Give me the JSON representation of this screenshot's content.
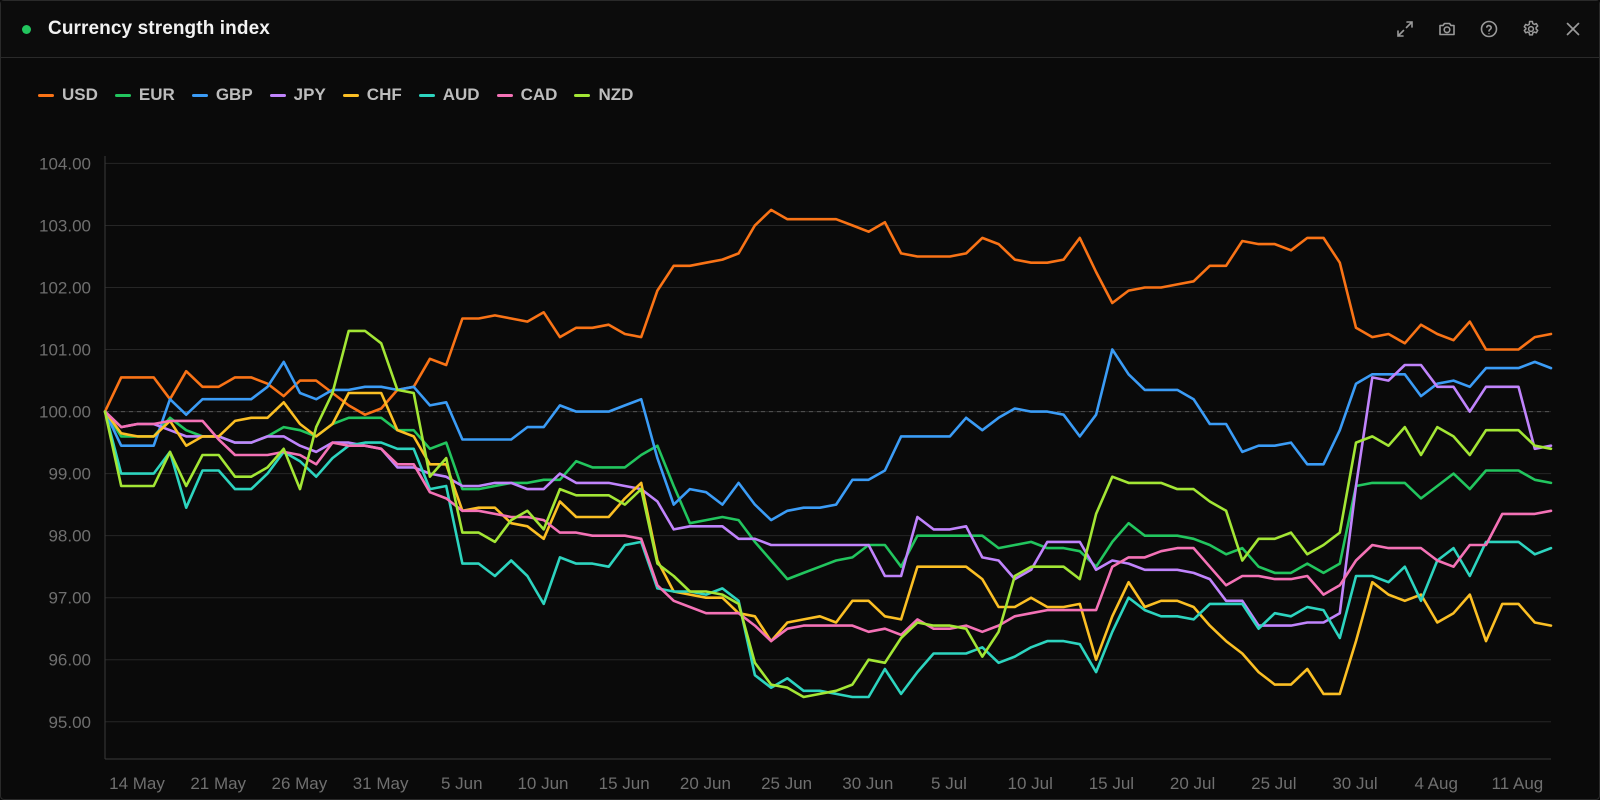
{
  "header": {
    "title": "Currency strength index",
    "status_color": "#22c55e",
    "tools": [
      {
        "name": "expand-icon"
      },
      {
        "name": "camera-icon"
      },
      {
        "name": "help-icon"
      },
      {
        "name": "gear-icon"
      },
      {
        "name": "close-icon"
      }
    ]
  },
  "legend": [
    {
      "label": "USD",
      "color": "#f97316"
    },
    {
      "label": "EUR",
      "color": "#22c55e"
    },
    {
      "label": "GBP",
      "color": "#3b9cf6"
    },
    {
      "label": "JPY",
      "color": "#c084fc"
    },
    {
      "label": "CHF",
      "color": "#fbbf24"
    },
    {
      "label": "AUD",
      "color": "#2dd4bf"
    },
    {
      "label": "CAD",
      "color": "#f472b6"
    },
    {
      "label": "NZD",
      "color": "#a3e635"
    }
  ],
  "chart_data": {
    "type": "line",
    "title": "Currency strength index",
    "xlabel": "",
    "ylabel": "",
    "x_ticks": [
      "14 May",
      "21 May",
      "26 May",
      "31 May",
      "5 Jun",
      "10 Jun",
      "15 Jun",
      "20 Jun",
      "25 Jun",
      "30 Jun",
      "5 Jul",
      "10 Jul",
      "15 Jul",
      "20 Jul",
      "25 Jul",
      "30 Jul",
      "4 Aug",
      "11 Aug"
    ],
    "y_ticks": [
      "95.00",
      "96.00",
      "97.00",
      "98.00",
      "99.00",
      "100.00",
      "101.00",
      "102.00",
      "103.00",
      "104.00"
    ],
    "ylim": [
      94.4,
      104.2
    ],
    "reference_line": 100,
    "grid": true,
    "legend_position": "top-left",
    "series": [
      {
        "name": "USD",
        "color": "#f97316",
        "values": [
          100.0,
          100.55,
          100.55,
          100.55,
          100.2,
          100.65,
          100.4,
          100.4,
          100.55,
          100.55,
          100.45,
          100.25,
          100.5,
          100.5,
          100.3,
          100.1,
          99.95,
          100.05,
          100.35,
          100.4,
          100.85,
          100.75,
          101.5,
          101.5,
          101.55,
          101.5,
          101.45,
          101.6,
          101.2,
          101.35,
          101.35,
          101.4,
          101.25,
          101.2,
          101.95,
          102.35,
          102.35,
          102.4,
          102.45,
          102.55,
          103.0,
          103.25,
          103.1,
          103.1,
          103.1,
          103.1,
          103.0,
          102.9,
          103.05,
          102.55,
          102.5,
          102.5,
          102.5,
          102.55,
          102.8,
          102.7,
          102.45,
          102.4,
          102.4,
          102.45,
          102.8,
          102.25,
          101.75,
          101.95,
          102.0,
          102.0,
          102.05,
          102.1,
          102.35,
          102.35,
          102.75,
          102.7,
          102.7,
          102.6,
          102.8,
          102.8,
          102.4,
          101.35,
          101.2,
          101.25,
          101.1,
          101.4,
          101.25,
          101.15,
          101.45,
          101.0,
          101.0,
          101.0,
          101.2,
          101.25
        ]
      },
      {
        "name": "EUR",
        "color": "#22c55e",
        "values": [
          100.0,
          99.6,
          99.6,
          99.6,
          99.9,
          99.7,
          99.6,
          99.6,
          99.5,
          99.5,
          99.6,
          99.75,
          99.7,
          99.6,
          99.8,
          99.9,
          99.9,
          99.9,
          99.7,
          99.7,
          99.4,
          99.5,
          98.75,
          98.75,
          98.8,
          98.85,
          98.85,
          98.9,
          98.9,
          99.2,
          99.1,
          99.1,
          99.1,
          99.3,
          99.45,
          98.8,
          98.2,
          98.25,
          98.3,
          98.25,
          97.9,
          97.6,
          97.3,
          97.4,
          97.5,
          97.6,
          97.65,
          97.85,
          97.85,
          97.5,
          98.0,
          98.0,
          98.0,
          98.0,
          98.0,
          97.8,
          97.85,
          97.9,
          97.8,
          97.8,
          97.75,
          97.5,
          97.9,
          98.2,
          98.0,
          98.0,
          98.0,
          97.95,
          97.85,
          97.7,
          97.8,
          97.5,
          97.4,
          97.4,
          97.55,
          97.4,
          97.55,
          98.8,
          98.85,
          98.85,
          98.85,
          98.6,
          98.8,
          99.0,
          98.75,
          99.05,
          99.05,
          99.05,
          98.9,
          98.85
        ]
      },
      {
        "name": "GBP",
        "color": "#3b9cf6",
        "values": [
          100.0,
          99.45,
          99.45,
          99.45,
          100.2,
          99.95,
          100.2,
          100.2,
          100.2,
          100.2,
          100.4,
          100.8,
          100.3,
          100.2,
          100.35,
          100.35,
          100.4,
          100.4,
          100.35,
          100.4,
          100.1,
          100.15,
          99.55,
          99.55,
          99.55,
          99.55,
          99.75,
          99.75,
          100.1,
          100.0,
          100.0,
          100.0,
          100.1,
          100.2,
          99.25,
          98.5,
          98.75,
          98.7,
          98.5,
          98.85,
          98.5,
          98.25,
          98.4,
          98.45,
          98.45,
          98.5,
          98.9,
          98.9,
          99.05,
          99.6,
          99.6,
          99.6,
          99.6,
          99.9,
          99.7,
          99.9,
          100.05,
          100.0,
          100.0,
          99.95,
          99.6,
          99.95,
          101.0,
          100.6,
          100.35,
          100.35,
          100.35,
          100.2,
          99.8,
          99.8,
          99.35,
          99.45,
          99.45,
          99.5,
          99.15,
          99.15,
          99.7,
          100.45,
          100.6,
          100.6,
          100.6,
          100.25,
          100.45,
          100.5,
          100.4,
          100.7,
          100.7,
          100.7,
          100.8,
          100.7
        ]
      },
      {
        "name": "JPY",
        "color": "#c084fc",
        "values": [
          100.0,
          99.75,
          99.8,
          99.8,
          99.7,
          99.6,
          99.6,
          99.6,
          99.5,
          99.5,
          99.6,
          99.6,
          99.45,
          99.35,
          99.5,
          99.5,
          99.45,
          99.4,
          99.1,
          99.1,
          99.0,
          98.95,
          98.8,
          98.8,
          98.85,
          98.85,
          98.75,
          98.75,
          99.0,
          98.85,
          98.85,
          98.85,
          98.8,
          98.75,
          98.55,
          98.1,
          98.15,
          98.15,
          98.15,
          97.95,
          97.95,
          97.85,
          97.85,
          97.85,
          97.85,
          97.85,
          97.85,
          97.85,
          97.35,
          97.35,
          98.3,
          98.1,
          98.1,
          98.15,
          97.65,
          97.6,
          97.3,
          97.45,
          97.9,
          97.9,
          97.9,
          97.45,
          97.6,
          97.55,
          97.45,
          97.45,
          97.45,
          97.4,
          97.3,
          96.95,
          96.95,
          96.55,
          96.55,
          96.55,
          96.6,
          96.6,
          96.75,
          98.8,
          100.55,
          100.5,
          100.75,
          100.75,
          100.4,
          100.4,
          100.0,
          100.4,
          100.4,
          100.4,
          99.4,
          99.45
        ]
      },
      {
        "name": "CHF",
        "color": "#fbbf24",
        "values": [
          100.0,
          99.65,
          99.6,
          99.6,
          99.85,
          99.45,
          99.6,
          99.6,
          99.85,
          99.9,
          99.9,
          100.15,
          99.8,
          99.6,
          99.8,
          100.3,
          100.3,
          100.3,
          99.7,
          99.6,
          99.15,
          99.15,
          98.4,
          98.45,
          98.45,
          98.2,
          98.15,
          97.95,
          98.55,
          98.3,
          98.3,
          98.3,
          98.6,
          98.85,
          97.6,
          97.1,
          97.05,
          97.0,
          97.0,
          96.75,
          96.7,
          96.3,
          96.6,
          96.65,
          96.7,
          96.6,
          96.95,
          96.95,
          96.7,
          96.65,
          97.5,
          97.5,
          97.5,
          97.5,
          97.3,
          96.85,
          96.85,
          97.0,
          96.85,
          96.85,
          96.9,
          96.0,
          96.7,
          97.25,
          96.85,
          96.95,
          96.95,
          96.85,
          96.55,
          96.3,
          96.1,
          95.8,
          95.6,
          95.6,
          95.85,
          95.45,
          95.45,
          96.3,
          97.25,
          97.05,
          96.95,
          97.05,
          96.6,
          96.75,
          97.05,
          96.3,
          96.9,
          96.9,
          96.6,
          96.55
        ]
      },
      {
        "name": "AUD",
        "color": "#2dd4bf",
        "values": [
          100.0,
          99.0,
          99.0,
          99.0,
          99.35,
          98.45,
          99.05,
          99.05,
          98.75,
          98.75,
          99.0,
          99.35,
          99.2,
          98.95,
          99.25,
          99.45,
          99.5,
          99.5,
          99.4,
          99.4,
          98.75,
          98.8,
          97.55,
          97.55,
          97.35,
          97.6,
          97.35,
          96.9,
          97.65,
          97.55,
          97.55,
          97.5,
          97.85,
          97.9,
          97.15,
          97.1,
          97.1,
          97.05,
          97.15,
          96.95,
          95.75,
          95.55,
          95.7,
          95.5,
          95.5,
          95.45,
          95.4,
          95.4,
          95.85,
          95.45,
          95.8,
          96.1,
          96.1,
          96.1,
          96.2,
          95.95,
          96.05,
          96.2,
          96.3,
          96.3,
          96.25,
          95.8,
          96.45,
          97.0,
          96.8,
          96.7,
          96.7,
          96.65,
          96.9,
          96.9,
          96.9,
          96.5,
          96.75,
          96.7,
          96.85,
          96.8,
          96.35,
          97.35,
          97.35,
          97.25,
          97.5,
          96.95,
          97.6,
          97.8,
          97.35,
          97.9,
          97.9,
          97.9,
          97.7,
          97.8
        ]
      },
      {
        "name": "CAD",
        "color": "#f472b6",
        "values": [
          100.0,
          99.75,
          99.8,
          99.8,
          99.85,
          99.85,
          99.85,
          99.55,
          99.3,
          99.3,
          99.3,
          99.35,
          99.3,
          99.15,
          99.5,
          99.45,
          99.45,
          99.4,
          99.15,
          99.15,
          98.7,
          98.6,
          98.4,
          98.4,
          98.35,
          98.3,
          98.3,
          98.25,
          98.05,
          98.05,
          98.0,
          98.0,
          98.0,
          97.95,
          97.2,
          96.95,
          96.85,
          96.75,
          96.75,
          96.75,
          96.55,
          96.3,
          96.5,
          96.55,
          96.55,
          96.55,
          96.55,
          96.45,
          96.5,
          96.4,
          96.65,
          96.5,
          96.5,
          96.55,
          96.45,
          96.55,
          96.7,
          96.75,
          96.8,
          96.8,
          96.8,
          96.8,
          97.5,
          97.65,
          97.65,
          97.75,
          97.8,
          97.8,
          97.5,
          97.2,
          97.35,
          97.35,
          97.3,
          97.3,
          97.35,
          97.05,
          97.2,
          97.6,
          97.85,
          97.8,
          97.8,
          97.8,
          97.6,
          97.5,
          97.85,
          97.85,
          98.35,
          98.35,
          98.35,
          98.4
        ]
      },
      {
        "name": "NZD",
        "color": "#a3e635",
        "values": [
          100.0,
          98.8,
          98.8,
          98.8,
          99.35,
          98.8,
          99.3,
          99.3,
          98.95,
          98.95,
          99.1,
          99.4,
          98.75,
          99.75,
          100.3,
          101.3,
          101.3,
          101.1,
          100.35,
          100.3,
          98.95,
          99.25,
          98.05,
          98.05,
          97.9,
          98.25,
          98.4,
          98.1,
          98.75,
          98.65,
          98.65,
          98.65,
          98.5,
          98.75,
          97.55,
          97.35,
          97.1,
          97.1,
          97.05,
          96.9,
          95.95,
          95.6,
          95.55,
          95.4,
          95.45,
          95.5,
          95.6,
          96.0,
          95.95,
          96.35,
          96.6,
          96.55,
          96.55,
          96.5,
          96.05,
          96.45,
          97.35,
          97.5,
          97.5,
          97.5,
          97.3,
          98.35,
          98.95,
          98.85,
          98.85,
          98.85,
          98.75,
          98.75,
          98.55,
          98.4,
          97.6,
          97.95,
          97.95,
          98.05,
          97.7,
          97.85,
          98.05,
          99.5,
          99.6,
          99.45,
          99.75,
          99.3,
          99.75,
          99.6,
          99.3,
          99.7,
          99.7,
          99.7,
          99.45,
          99.4
        ]
      }
    ]
  }
}
